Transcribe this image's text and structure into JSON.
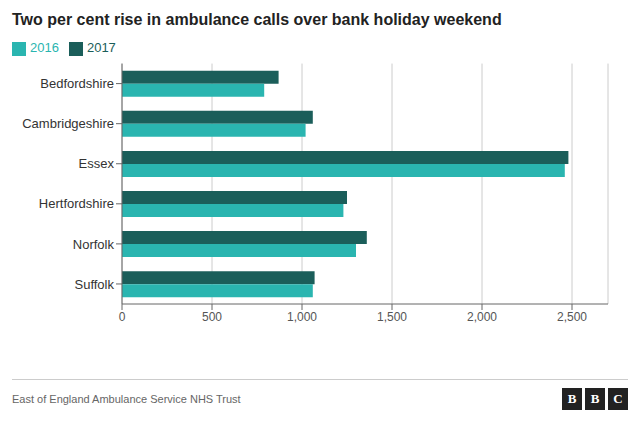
{
  "chart_data": {
    "type": "bar",
    "orientation": "horizontal",
    "title": "Two per cent rise in ambulance calls over bank holiday weekend",
    "categories": [
      "Suffolk",
      "Norfolk",
      "Hertfordshire",
      "Essex",
      "Cambridgeshire",
      "Bedfordshire"
    ],
    "series": [
      {
        "name": "2017",
        "color": "#1b5e5a",
        "values": [
          1070,
          1360,
          1250,
          2480,
          1060,
          870
        ]
      },
      {
        "name": "2016",
        "color": "#2ab5b0",
        "values": [
          1060,
          1300,
          1230,
          2460,
          1020,
          790
        ]
      }
    ],
    "xlim": [
      0,
      2700
    ],
    "xticks": [
      0,
      500,
      {
        "value": 1000,
        "label": "1,000"
      },
      {
        "value": 1500,
        "label": "1,500"
      },
      {
        "value": 2000,
        "label": "2,000"
      },
      {
        "value": 2500,
        "label": "2,500"
      }
    ],
    "grid": true,
    "legend": "top left",
    "annotations": [
      "East of England Ambulance Service NHS Trust",
      "BBC"
    ]
  }
}
